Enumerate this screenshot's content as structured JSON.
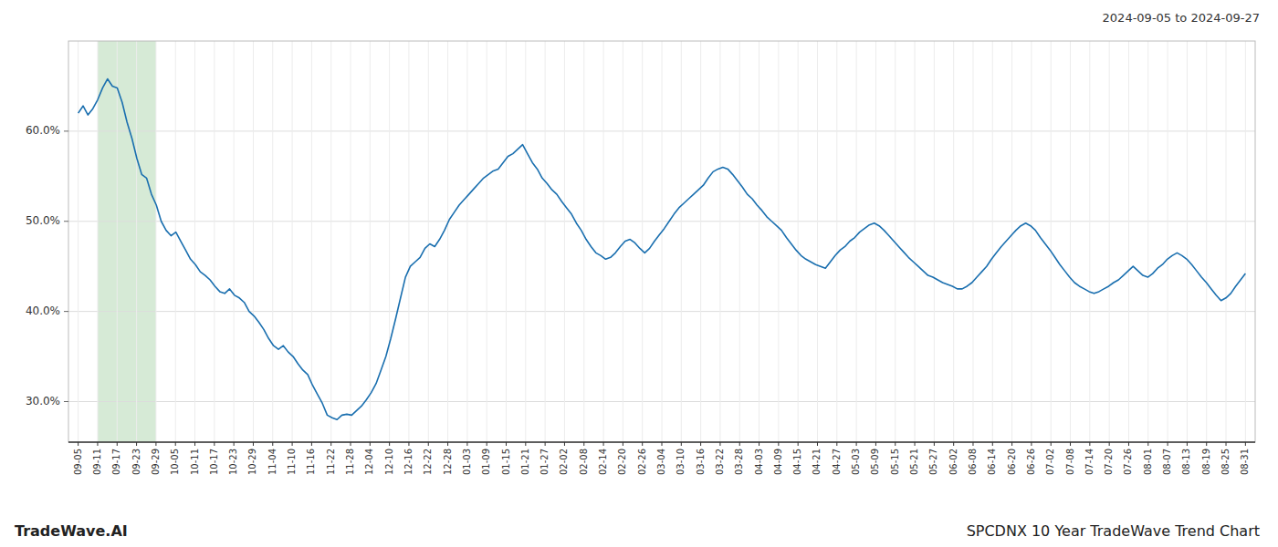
{
  "chart_data": {
    "type": "line",
    "title": "2024-09-05 to 2024-09-27",
    "annotations": [
      "TradeWave.AI",
      "SPCDNX 10 Year TradeWave Trend Chart"
    ],
    "color": "#1a6faf",
    "grid": true,
    "highlight": {
      "start": 1,
      "end": 4,
      "color": "#d6ead6"
    },
    "ylim": [
      0.255,
      0.7
    ],
    "yticks": [
      {
        "value": 0.3,
        "label": "30.0%"
      },
      {
        "value": 0.4,
        "label": "40.0%"
      },
      {
        "value": 0.5,
        "label": "50.0%"
      },
      {
        "value": 0.6,
        "label": "60.0%"
      }
    ],
    "xlim": [
      -0.5,
      60.5
    ],
    "xticks": [
      {
        "value": 0,
        "label": "09-05"
      },
      {
        "value": 1,
        "label": "09-11"
      },
      {
        "value": 2,
        "label": "09-17"
      },
      {
        "value": 3,
        "label": "09-23"
      },
      {
        "value": 4,
        "label": "09-29"
      },
      {
        "value": 5,
        "label": "10-05"
      },
      {
        "value": 6,
        "label": "10-11"
      },
      {
        "value": 7,
        "label": "10-17"
      },
      {
        "value": 8,
        "label": "10-23"
      },
      {
        "value": 9,
        "label": "10-29"
      },
      {
        "value": 10,
        "label": "11-04"
      },
      {
        "value": 11,
        "label": "11-10"
      },
      {
        "value": 12,
        "label": "11-16"
      },
      {
        "value": 13,
        "label": "11-22"
      },
      {
        "value": 14,
        "label": "11-28"
      },
      {
        "value": 15,
        "label": "12-04"
      },
      {
        "value": 16,
        "label": "12-10"
      },
      {
        "value": 17,
        "label": "12-16"
      },
      {
        "value": 18,
        "label": "12-22"
      },
      {
        "value": 19,
        "label": "12-28"
      },
      {
        "value": 20,
        "label": "01-03"
      },
      {
        "value": 21,
        "label": "01-09"
      },
      {
        "value": 22,
        "label": "01-15"
      },
      {
        "value": 23,
        "label": "01-21"
      },
      {
        "value": 24,
        "label": "01-27"
      },
      {
        "value": 25,
        "label": "02-02"
      },
      {
        "value": 26,
        "label": "02-08"
      },
      {
        "value": 27,
        "label": "02-14"
      },
      {
        "value": 28,
        "label": "02-20"
      },
      {
        "value": 29,
        "label": "02-26"
      },
      {
        "value": 30,
        "label": "03-04"
      },
      {
        "value": 31,
        "label": "03-10"
      },
      {
        "value": 32,
        "label": "03-16"
      },
      {
        "value": 33,
        "label": "03-22"
      },
      {
        "value": 34,
        "label": "03-28"
      },
      {
        "value": 35,
        "label": "04-03"
      },
      {
        "value": 36,
        "label": "04-09"
      },
      {
        "value": 37,
        "label": "04-15"
      },
      {
        "value": 38,
        "label": "04-21"
      },
      {
        "value": 39,
        "label": "04-27"
      },
      {
        "value": 40,
        "label": "05-03"
      },
      {
        "value": 41,
        "label": "05-09"
      },
      {
        "value": 42,
        "label": "05-15"
      },
      {
        "value": 43,
        "label": "05-21"
      },
      {
        "value": 44,
        "label": "05-27"
      },
      {
        "value": 45,
        "label": "06-02"
      },
      {
        "value": 46,
        "label": "06-08"
      },
      {
        "value": 47,
        "label": "06-14"
      },
      {
        "value": 48,
        "label": "06-20"
      },
      {
        "value": 49,
        "label": "06-26"
      },
      {
        "value": 50,
        "label": "07-02"
      },
      {
        "value": 51,
        "label": "07-08"
      },
      {
        "value": 52,
        "label": "07-14"
      },
      {
        "value": 53,
        "label": "07-20"
      },
      {
        "value": 54,
        "label": "07-26"
      },
      {
        "value": 55,
        "label": "08-01"
      },
      {
        "value": 56,
        "label": "08-07"
      },
      {
        "value": 57,
        "label": "08-13"
      },
      {
        "value": 58,
        "label": "08-19"
      },
      {
        "value": 59,
        "label": "08-25"
      },
      {
        "value": 60,
        "label": "08-31"
      }
    ],
    "values": [
      0.62,
      0.628,
      0.618,
      0.625,
      0.635,
      0.648,
      0.658,
      0.65,
      0.648,
      0.632,
      0.61,
      0.592,
      0.57,
      0.552,
      0.548,
      0.53,
      0.518,
      0.5,
      0.49,
      0.484,
      0.488,
      0.478,
      0.468,
      0.458,
      0.452,
      0.444,
      0.44,
      0.435,
      0.428,
      0.422,
      0.42,
      0.425,
      0.418,
      0.415,
      0.41,
      0.4,
      0.395,
      0.388,
      0.38,
      0.37,
      0.362,
      0.358,
      0.362,
      0.355,
      0.35,
      0.342,
      0.335,
      0.33,
      0.318,
      0.308,
      0.298,
      0.285,
      0.282,
      0.28,
      0.285,
      0.286,
      0.285,
      0.29,
      0.295,
      0.302,
      0.31,
      0.32,
      0.335,
      0.35,
      0.37,
      0.392,
      0.415,
      0.438,
      0.45,
      0.455,
      0.46,
      0.47,
      0.475,
      0.472,
      0.48,
      0.49,
      0.502,
      0.51,
      0.518,
      0.524,
      0.53,
      0.536,
      0.542,
      0.548,
      0.552,
      0.556,
      0.558,
      0.565,
      0.572,
      0.575,
      0.58,
      0.585,
      0.575,
      0.565,
      0.558,
      0.548,
      0.542,
      0.535,
      0.53,
      0.522,
      0.515,
      0.508,
      0.498,
      0.49,
      0.48,
      0.472,
      0.465,
      0.462,
      0.458,
      0.46,
      0.465,
      0.472,
      0.478,
      0.48,
      0.476,
      0.47,
      0.465,
      0.47,
      0.478,
      0.485,
      0.492,
      0.5,
      0.508,
      0.515,
      0.52,
      0.525,
      0.53,
      0.535,
      0.54,
      0.548,
      0.555,
      0.558,
      0.56,
      0.558,
      0.552,
      0.545,
      0.538,
      0.53,
      0.525,
      0.518,
      0.512,
      0.505,
      0.5,
      0.495,
      0.49,
      0.482,
      0.475,
      0.468,
      0.462,
      0.458,
      0.455,
      0.452,
      0.45,
      0.448,
      0.455,
      0.462,
      0.468,
      0.472,
      0.478,
      0.482,
      0.488,
      0.492,
      0.496,
      0.498,
      0.495,
      0.49,
      0.484,
      0.478,
      0.472,
      0.466,
      0.46,
      0.455,
      0.45,
      0.445,
      0.44,
      0.438,
      0.435,
      0.432,
      0.43,
      0.428,
      0.425,
      0.425,
      0.428,
      0.432,
      0.438,
      0.444,
      0.45,
      0.458,
      0.465,
      0.472,
      0.478,
      0.484,
      0.49,
      0.495,
      0.498,
      0.495,
      0.49,
      0.482,
      0.475,
      0.468,
      0.46,
      0.452,
      0.445,
      0.438,
      0.432,
      0.428,
      0.425,
      0.422,
      0.42,
      0.422,
      0.425,
      0.428,
      0.432,
      0.435,
      0.44,
      0.445,
      0.45,
      0.445,
      0.44,
      0.438,
      0.442,
      0.448,
      0.452,
      0.458,
      0.462,
      0.465,
      0.462,
      0.458,
      0.452,
      0.445,
      0.438,
      0.432,
      0.425,
      0.418,
      0.412,
      0.415,
      0.42,
      0.428,
      0.435,
      0.442
    ]
  }
}
